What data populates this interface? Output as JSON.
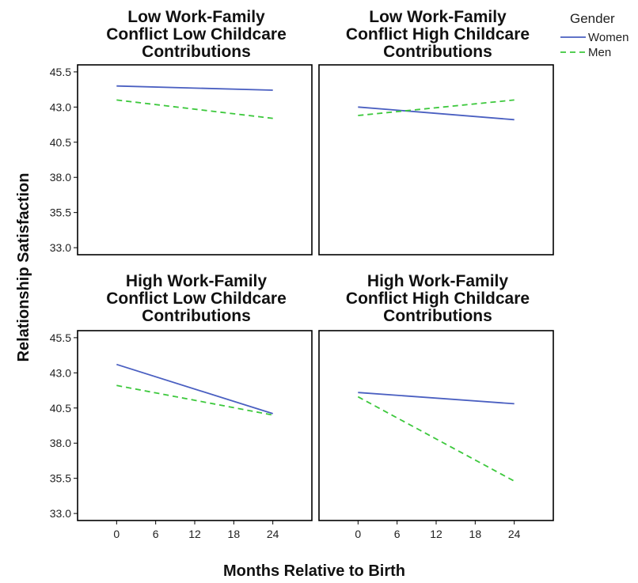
{
  "chart_data": {
    "type": "line",
    "layout": "2x2 small multiples",
    "xlabel": "Months Relative to Birth",
    "ylabel": "Relationship Satisfaction",
    "x_ticks": [
      0,
      6,
      12,
      18,
      24
    ],
    "y_ticks": [
      "33.0",
      "35.5",
      "38.0",
      "40.5",
      "43.0",
      "45.5"
    ],
    "xlim": [
      -6,
      30
    ],
    "ylim": [
      32.5,
      46.0
    ],
    "grid": false,
    "legend": {
      "title": "Gender",
      "placement": "top-right",
      "entries": [
        {
          "label": "Women",
          "color": "#4a5fc1",
          "style": "solid"
        },
        {
          "label": "Men",
          "color": "#3cc83c",
          "style": "dashed"
        }
      ]
    },
    "panels": [
      {
        "title": [
          "Low Work-Family",
          "Conflict Low Childcare",
          "Contributions"
        ],
        "series": [
          {
            "name": "Women",
            "x": [
              0,
              24
            ],
            "y": [
              44.5,
              44.2
            ]
          },
          {
            "name": "Men",
            "x": [
              0,
              24
            ],
            "y": [
              43.5,
              42.2
            ]
          }
        ]
      },
      {
        "title": [
          "Low Work-Family",
          "Conflict High Childcare",
          "Contributions"
        ],
        "series": [
          {
            "name": "Women",
            "x": [
              0,
              24
            ],
            "y": [
              43.0,
              42.1
            ]
          },
          {
            "name": "Men",
            "x": [
              0,
              24
            ],
            "y": [
              42.4,
              43.5
            ]
          }
        ]
      },
      {
        "title": [
          "High Work-Family",
          "Conflict Low Childcare",
          "Contributions"
        ],
        "series": [
          {
            "name": "Women",
            "x": [
              0,
              24
            ],
            "y": [
              43.6,
              40.1
            ]
          },
          {
            "name": "Men",
            "x": [
              0,
              24
            ],
            "y": [
              42.1,
              40.0
            ]
          }
        ]
      },
      {
        "title": [
          "High Work-Family",
          "Conflict High Childcare",
          "Contributions"
        ],
        "series": [
          {
            "name": "Women",
            "x": [
              0,
              24
            ],
            "y": [
              41.6,
              40.8
            ]
          },
          {
            "name": "Men",
            "x": [
              0,
              24
            ],
            "y": [
              41.3,
              35.3
            ]
          }
        ]
      }
    ]
  }
}
